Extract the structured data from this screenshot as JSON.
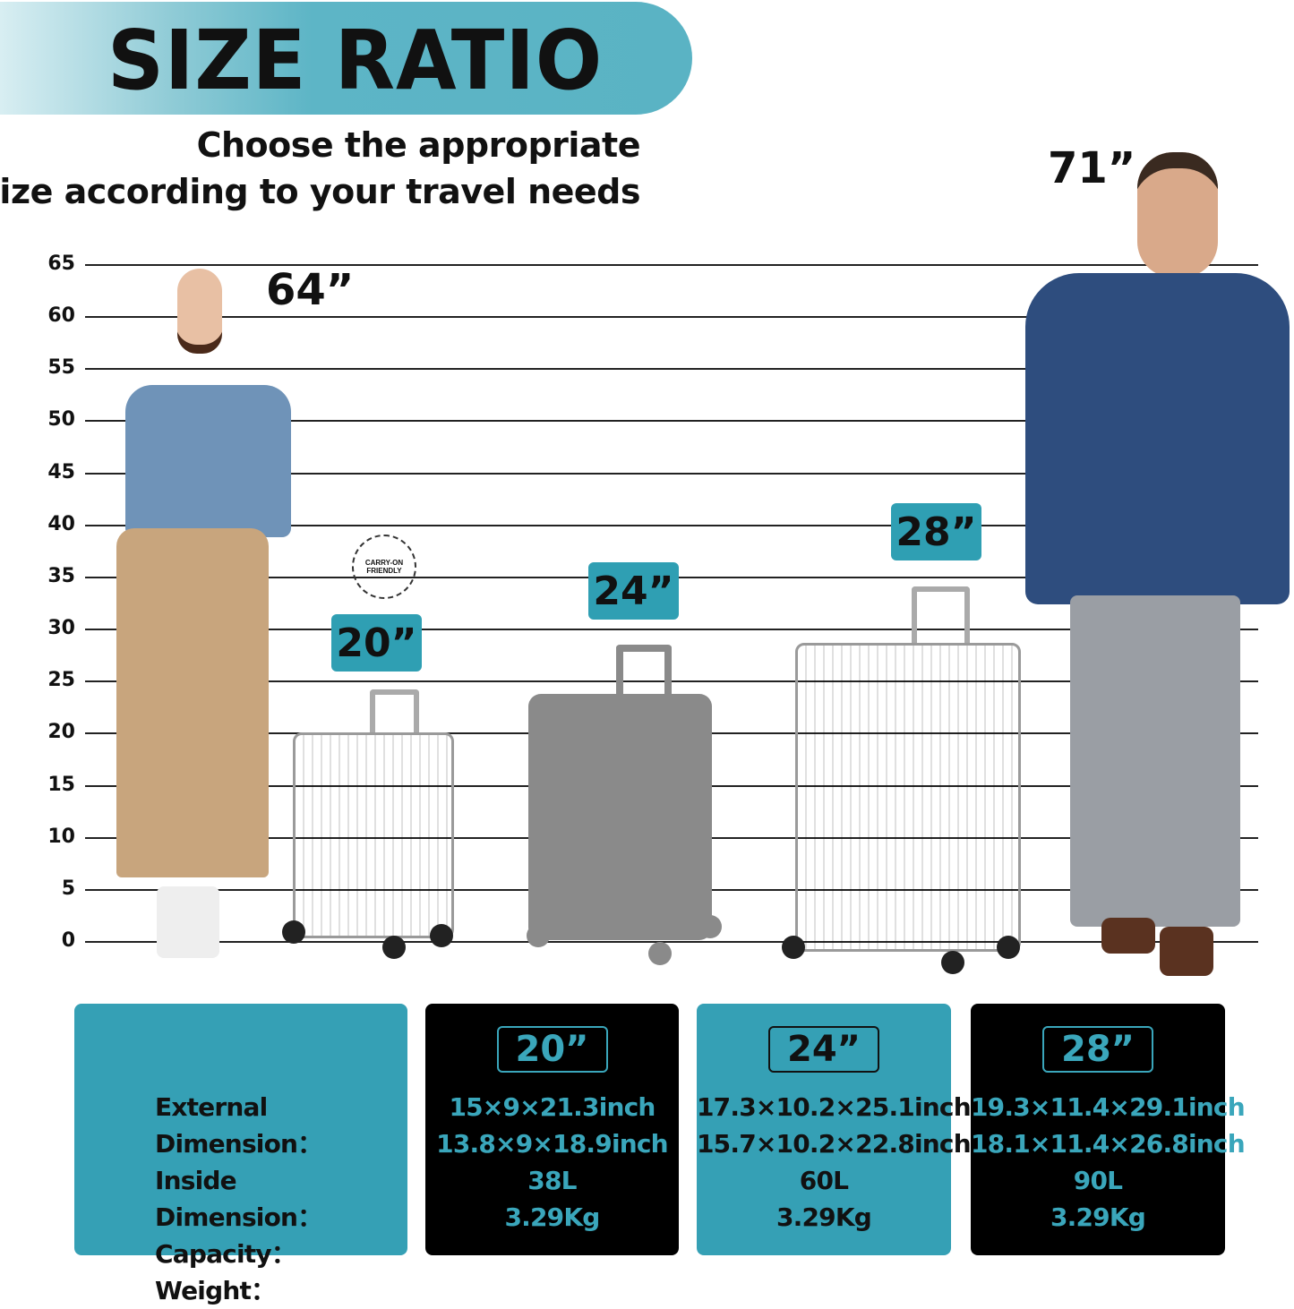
{
  "header": {
    "title": "SIZE RATIO",
    "subtitle_line1": "Choose the appropriate",
    "subtitle_line2": "size according to your travel needs"
  },
  "scale": {
    "ticks": [
      "65",
      "60",
      "55",
      "50",
      "45",
      "40",
      "35",
      "30",
      "25",
      "20",
      "15",
      "10",
      "5",
      "0"
    ],
    "unit": "inch"
  },
  "people": [
    {
      "height_label": "64”",
      "height_value": 64
    },
    {
      "height_label": "71”",
      "height_value": 71
    }
  ],
  "suitcases": [
    {
      "badge": "20”",
      "height_value": 21.3,
      "stamp": "CARRY-ON FRIENDLY"
    },
    {
      "badge": "24”",
      "height_value": 25.1
    },
    {
      "badge": "28”",
      "height_value": 29.1
    }
  ],
  "specs": {
    "labels": [
      "External Dimension：",
      "Inside Dimension：",
      "Capacity：",
      "Weight："
    ],
    "columns": [
      {
        "size": "20”",
        "external": "15×9×21.3inch",
        "inside": "13.8×9×18.9inch",
        "capacity": "38L",
        "weight": "3.29Kg"
      },
      {
        "size": "24”",
        "external": "17.3×10.2×25.1inch",
        "inside": "15.7×10.2×22.8inch",
        "capacity": "60L",
        "weight": "3.29Kg"
      },
      {
        "size": "28”",
        "external": "19.3×11.4×29.1inch",
        "inside": "18.1×11.4×26.8inch",
        "capacity": "90L",
        "weight": "3.29Kg"
      }
    ]
  },
  "colors": {
    "accent": "#2f9fb3",
    "dark": "#000000"
  }
}
